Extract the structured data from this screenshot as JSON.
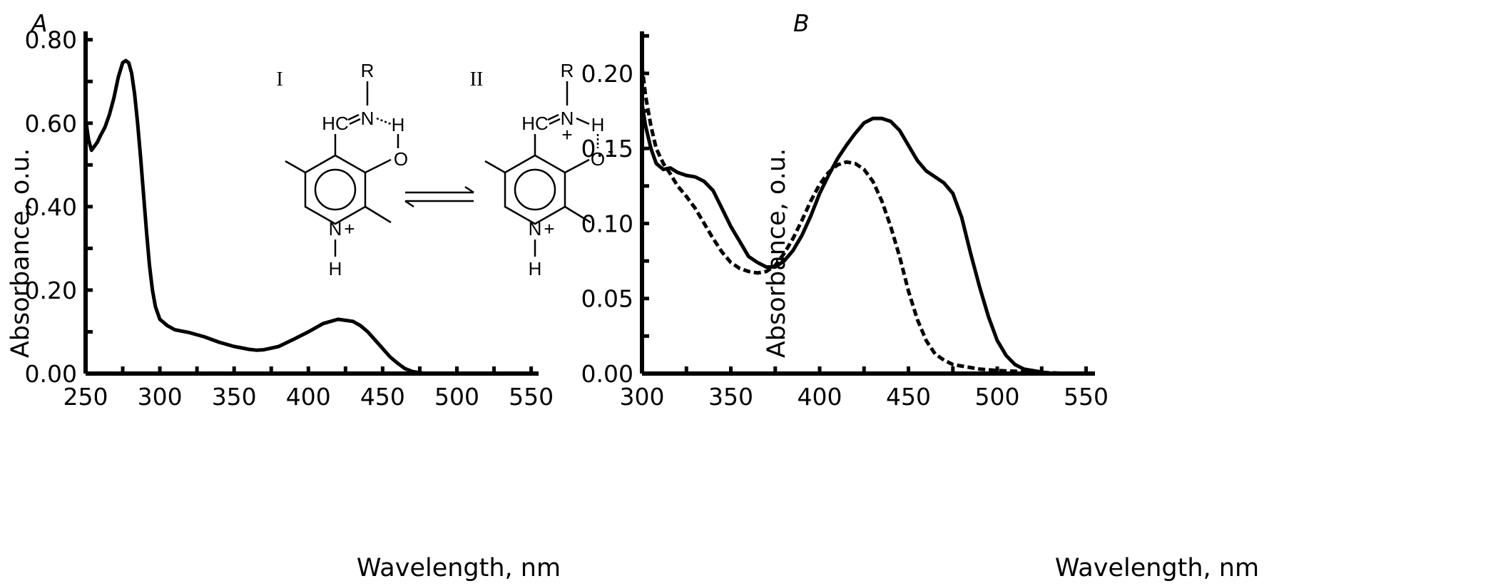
{
  "chart_data": [
    {
      "type": "line",
      "panel_label": "A",
      "xlabel": "Wavelength, nm",
      "ylabel": "Absorbance, o.u.",
      "xlim": [
        250,
        555
      ],
      "ylim": [
        0,
        0.82
      ],
      "xticks": [
        250,
        300,
        350,
        400,
        450,
        500,
        550
      ],
      "yticks": [
        0.0,
        0.2,
        0.4,
        0.6,
        0.8
      ],
      "xtick_labels": [
        "250",
        "300",
        "350",
        "400",
        "450",
        "500",
        "550"
      ],
      "ytick_labels": [
        "0.00",
        "0.20",
        "0.40",
        "0.60",
        "0.80"
      ],
      "series": [
        {
          "style": "solid",
          "x": [
            250,
            252,
            254,
            256,
            258,
            260,
            263,
            266,
            269,
            272,
            275,
            277,
            279,
            281,
            283,
            285,
            287,
            289,
            291,
            293,
            295,
            297,
            300,
            305,
            310,
            320,
            330,
            340,
            350,
            360,
            365,
            370,
            380,
            390,
            400,
            410,
            420,
            430,
            435,
            440,
            445,
            450,
            455,
            460,
            465,
            470,
            475,
            480,
            490,
            500,
            520,
            550
          ],
          "y": [
            0.61,
            0.56,
            0.535,
            0.545,
            0.555,
            0.57,
            0.59,
            0.62,
            0.66,
            0.71,
            0.745,
            0.75,
            0.745,
            0.72,
            0.67,
            0.6,
            0.52,
            0.43,
            0.34,
            0.26,
            0.2,
            0.16,
            0.13,
            0.115,
            0.105,
            0.098,
            0.088,
            0.075,
            0.065,
            0.058,
            0.056,
            0.057,
            0.065,
            0.082,
            0.1,
            0.12,
            0.13,
            0.125,
            0.115,
            0.1,
            0.08,
            0.06,
            0.04,
            0.025,
            0.012,
            0.005,
            0.002,
            0.0,
            0.0,
            0.0,
            0.0,
            0.0
          ]
        }
      ]
    },
    {
      "type": "line",
      "panel_label": "B",
      "xlabel": "Wavelength, nm",
      "ylabel": "Absorbance, o.u.",
      "xlim": [
        300,
        555
      ],
      "ylim": [
        0,
        0.228
      ],
      "xticks": [
        300,
        350,
        400,
        450,
        500,
        550
      ],
      "yticks": [
        0.0,
        0.05,
        0.1,
        0.15,
        0.2
      ],
      "xtick_labels": [
        "300",
        "350",
        "400",
        "450",
        "500",
        "550"
      ],
      "ytick_labels": [
        "0.00",
        "0.05",
        "0.10",
        "0.15",
        "0.20"
      ],
      "series": [
        {
          "style": "solid",
          "x": [
            300,
            302,
            305,
            308,
            312,
            316,
            320,
            325,
            330,
            335,
            340,
            345,
            350,
            355,
            360,
            365,
            370,
            375,
            380,
            385,
            390,
            395,
            400,
            405,
            410,
            415,
            420,
            425,
            430,
            435,
            440,
            445,
            450,
            455,
            460,
            465,
            470,
            475,
            480,
            485,
            490,
            495,
            500,
            505,
            510,
            515,
            520,
            530,
            540,
            550
          ],
          "y": [
            0.18,
            0.165,
            0.15,
            0.14,
            0.136,
            0.137,
            0.134,
            0.132,
            0.131,
            0.128,
            0.122,
            0.11,
            0.098,
            0.088,
            0.078,
            0.074,
            0.071,
            0.071,
            0.075,
            0.082,
            0.092,
            0.105,
            0.12,
            0.132,
            0.143,
            0.152,
            0.16,
            0.167,
            0.17,
            0.17,
            0.168,
            0.162,
            0.152,
            0.142,
            0.135,
            0.131,
            0.127,
            0.12,
            0.104,
            0.08,
            0.058,
            0.038,
            0.022,
            0.012,
            0.006,
            0.003,
            0.002,
            0.0,
            0.0,
            0.0
          ]
        },
        {
          "style": "dashed",
          "x": [
            300,
            302,
            305,
            308,
            312,
            316,
            320,
            325,
            330,
            335,
            340,
            345,
            350,
            355,
            360,
            365,
            370,
            375,
            380,
            385,
            390,
            395,
            400,
            405,
            410,
            415,
            420,
            425,
            430,
            435,
            440,
            445,
            450,
            455,
            460,
            465,
            470,
            475,
            480,
            485,
            490,
            500,
            510,
            520,
            530,
            540,
            550
          ],
          "y": [
            0.205,
            0.185,
            0.165,
            0.15,
            0.14,
            0.133,
            0.125,
            0.118,
            0.11,
            0.1,
            0.09,
            0.081,
            0.074,
            0.07,
            0.068,
            0.067,
            0.068,
            0.072,
            0.08,
            0.09,
            0.102,
            0.115,
            0.126,
            0.134,
            0.139,
            0.141,
            0.14,
            0.136,
            0.128,
            0.115,
            0.098,
            0.078,
            0.055,
            0.036,
            0.022,
            0.013,
            0.009,
            0.006,
            0.005,
            0.004,
            0.003,
            0.002,
            0.0015,
            0.001,
            0.0005,
            0.0,
            0.0
          ]
        }
      ]
    }
  ],
  "structures": {
    "left": {
      "roman": "I",
      "r_group": "R",
      "imine_c": "HC",
      "imine_n": "N",
      "phenol_h": "H",
      "phenol_o": "O",
      "ring_n": "N",
      "ring_charge": "+",
      "ring_h": "H"
    },
    "right": {
      "roman": "II",
      "r_group": "R",
      "imine_c": "HC",
      "imine_n": "N",
      "imine_charge": "+",
      "phenol_h": "H",
      "phenol_o": "O",
      "phenol_charge": "-",
      "ring_n": "N",
      "ring_charge": "+",
      "ring_h": "H"
    }
  }
}
